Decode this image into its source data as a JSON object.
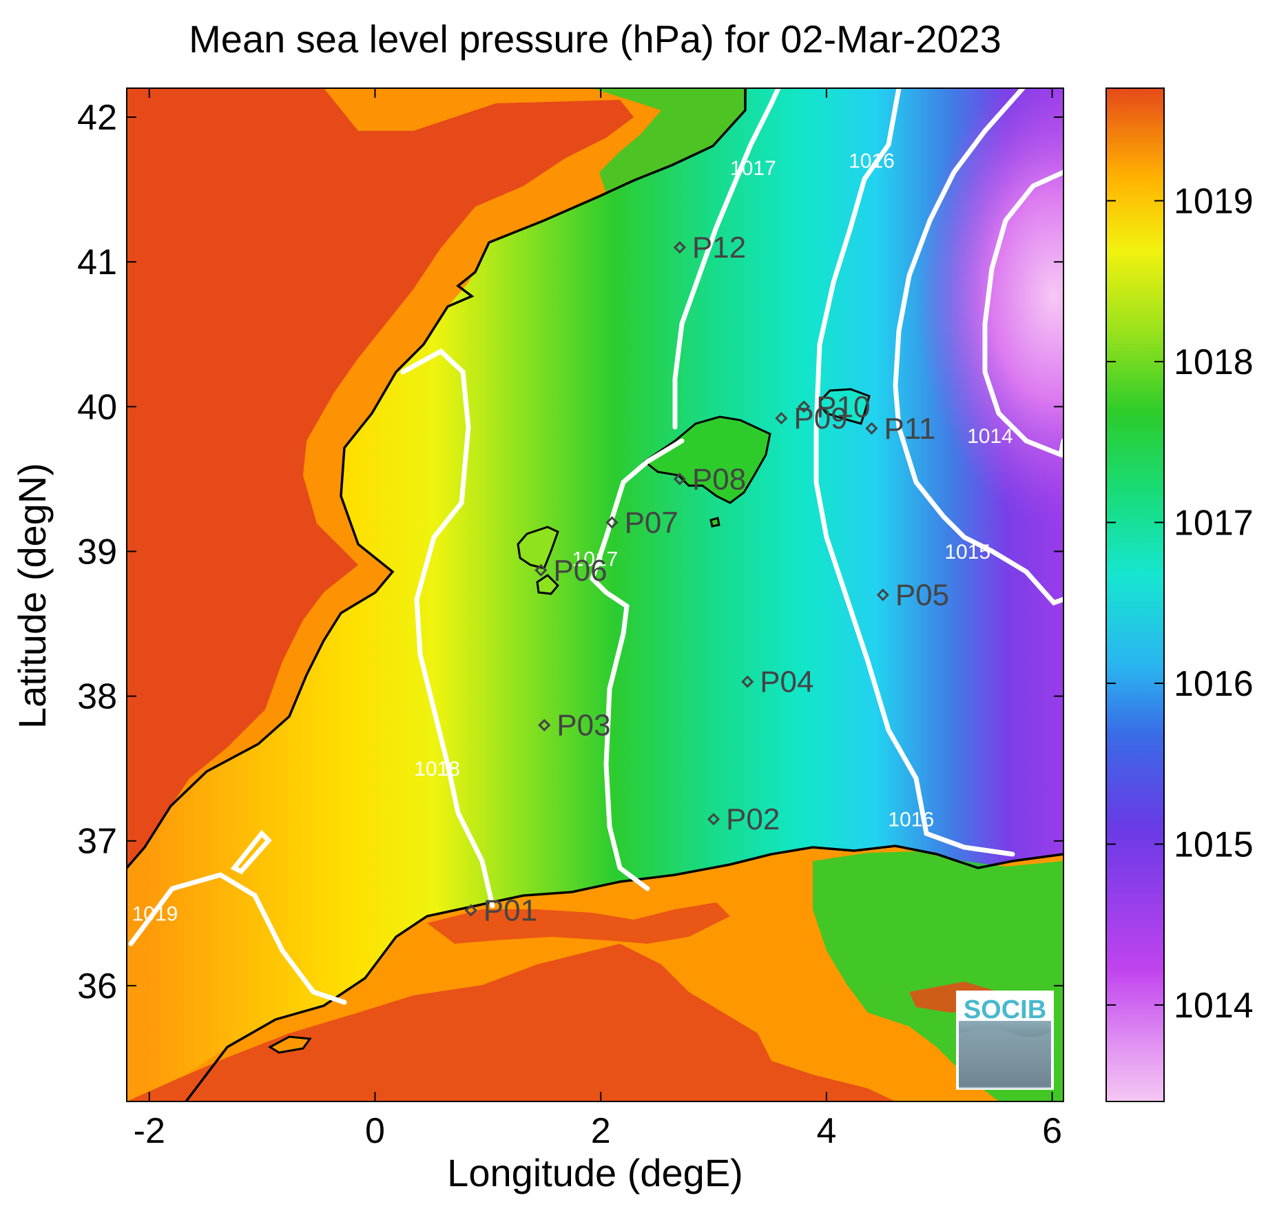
{
  "title": "Mean sea level pressure (hPa) for 02-Mar-2023",
  "colors": {
    "land_high": "#e64a19",
    "orange": "#ff9800",
    "yellow": "#f2f20f",
    "green": "#2ec92a",
    "cyan": "#14e6cc",
    "blue": "#3399e6",
    "purple": "#8c33e6",
    "violet": "#cc44ee",
    "lilac": "#f2b3f2",
    "contour": "#ffffff",
    "coast": "#000000",
    "marker": "#444444",
    "logo": "#49b8cf"
  },
  "map": {
    "xlabel": "Longitude (degE)",
    "ylabel": "Latitude (degN)",
    "xlim": [
      -2.2,
      6.1
    ],
    "ylim": [
      35.2,
      42.2
    ],
    "xticks": [
      -2,
      0,
      2,
      4,
      6
    ],
    "yticks": [
      36,
      37,
      38,
      39,
      40,
      41,
      42
    ],
    "contour_labels": [
      {
        "text": "1019",
        "lon": -1.95,
        "lat": 36.45
      },
      {
        "text": "1018",
        "lon": 0.55,
        "lat": 37.45
      },
      {
        "text": "1017",
        "lon": 1.95,
        "lat": 38.9
      },
      {
        "text": "1017",
        "lon": 3.35,
        "lat": 41.6
      },
      {
        "text": "1016",
        "lon": 4.4,
        "lat": 41.65
      },
      {
        "text": "1016",
        "lon": 4.75,
        "lat": 37.1
      },
      {
        "text": "1015",
        "lon": 5.25,
        "lat": 38.95
      },
      {
        "text": "1014",
        "lon": 5.45,
        "lat": 39.75
      }
    ],
    "points": [
      {
        "label": "P01",
        "lon": 0.85,
        "lat": 36.52
      },
      {
        "label": "P02",
        "lon": 3.0,
        "lat": 37.15
      },
      {
        "label": "P03",
        "lon": 1.5,
        "lat": 37.8
      },
      {
        "label": "P04",
        "lon": 3.3,
        "lat": 38.1
      },
      {
        "label": "P05",
        "lon": 4.5,
        "lat": 38.7
      },
      {
        "label": "P06",
        "lon": 1.47,
        "lat": 38.87
      },
      {
        "label": "P07",
        "lon": 2.1,
        "lat": 39.2
      },
      {
        "label": "P08",
        "lon": 2.7,
        "lat": 39.5
      },
      {
        "label": "P09",
        "lon": 3.6,
        "lat": 39.92
      },
      {
        "label": "P10",
        "lon": 3.8,
        "lat": 40.0
      },
      {
        "label": "P11",
        "lon": 4.4,
        "lat": 39.85
      },
      {
        "label": "P12",
        "lon": 2.7,
        "lat": 41.1
      }
    ]
  },
  "colorbar": {
    "ticks": [
      1014,
      1015,
      1016,
      1017,
      1018,
      1019
    ],
    "range": [
      1013.4,
      1019.7
    ]
  },
  "logo": {
    "text": "SOCIB"
  }
}
